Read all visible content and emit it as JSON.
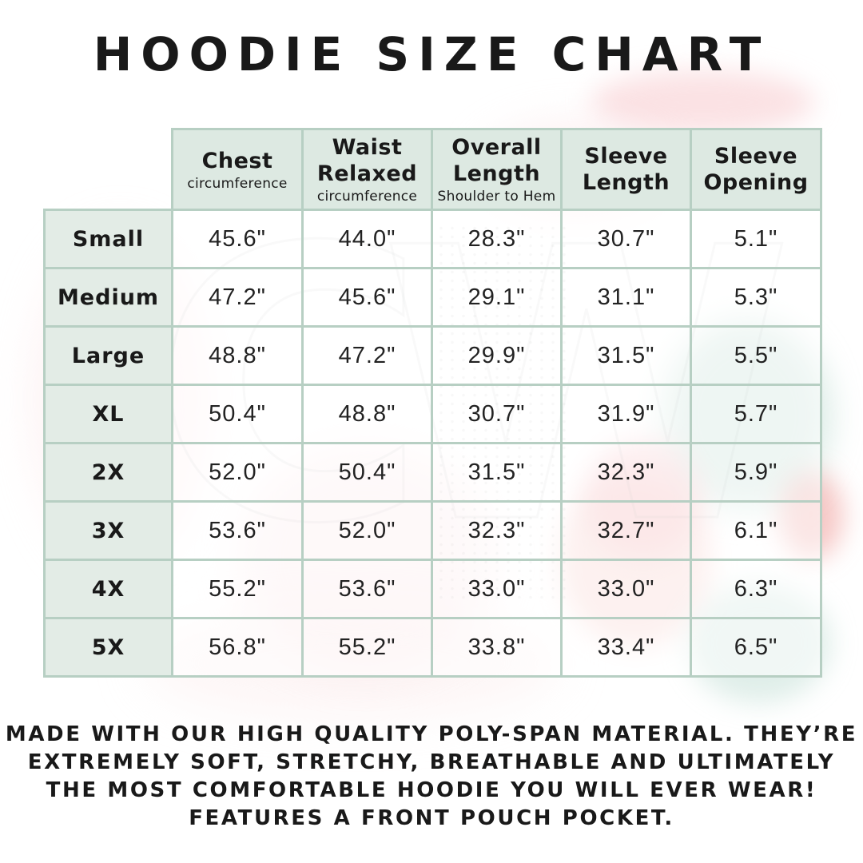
{
  "page": {
    "title": "HOODIE SIZE CHART"
  },
  "colors": {
    "table_border": "#b7cfc3",
    "header_background": "#dde9e2",
    "size_column_background": "#e3ece6",
    "text": "#191919",
    "watermark_pink": "#f8cace",
    "watermark_teal": "#9dcbbb",
    "watermark_coral": "#ec8276"
  },
  "watermark_letters": "CW",
  "table": {
    "columns": [
      {
        "title": "Chest",
        "subtitle": "circumference"
      },
      {
        "title": "Waist\nRelaxed",
        "subtitle": "circumference"
      },
      {
        "title": "Overall\nLength",
        "subtitle": "Shoulder to Hem"
      },
      {
        "title": "Sleeve\nLength",
        "subtitle": ""
      },
      {
        "title": "Sleeve\nOpening",
        "subtitle": ""
      }
    ],
    "rows": [
      {
        "size": "Small",
        "values": [
          "45.6\"",
          "44.0\"",
          "28.3\"",
          "30.7\"",
          "5.1\""
        ]
      },
      {
        "size": "Medium",
        "values": [
          "47.2\"",
          "45.6\"",
          "29.1\"",
          "31.1\"",
          "5.3\""
        ]
      },
      {
        "size": "Large",
        "values": [
          "48.8\"",
          "47.2\"",
          "29.9\"",
          "31.5\"",
          "5.5\""
        ]
      },
      {
        "size": "XL",
        "values": [
          "50.4\"",
          "48.8\"",
          "30.7\"",
          "31.9\"",
          "5.7\""
        ]
      },
      {
        "size": "2X",
        "values": [
          "52.0\"",
          "50.4\"",
          "31.5\"",
          "32.3\"",
          "5.9\""
        ]
      },
      {
        "size": "3X",
        "values": [
          "53.6\"",
          "52.0\"",
          "32.3\"",
          "32.7\"",
          "6.1\""
        ]
      },
      {
        "size": "4X",
        "values": [
          "55.2\"",
          "53.6\"",
          "33.0\"",
          "33.0\"",
          "6.3\""
        ]
      },
      {
        "size": "5X",
        "values": [
          "56.8\"",
          "55.2\"",
          "33.8\"",
          "33.4\"",
          "6.5\""
        ]
      }
    ]
  },
  "description_lines": [
    "MADE WITH OUR HIGH QUALITY POLY-SPAN MATERIAL. THEY’RE",
    "EXTREMELY SOFT, STRETCHY, BREATHABLE AND ULTIMATELY",
    "THE MOST COMFORTABLE HOODIE YOU WILL EVER WEAR!",
    "FEATURES A FRONT POUCH POCKET."
  ],
  "chart_data": {
    "type": "table",
    "title": "HOODIE SIZE CHART",
    "columns": [
      "Size",
      "Chest circumference",
      "Waist Relaxed circumference",
      "Overall Length Shoulder to Hem",
      "Sleeve Length",
      "Sleeve Opening"
    ],
    "rows": [
      [
        "Small",
        45.6,
        44.0,
        28.3,
        30.7,
        5.1
      ],
      [
        "Medium",
        47.2,
        45.6,
        29.1,
        31.1,
        5.3
      ],
      [
        "Large",
        48.8,
        47.2,
        29.9,
        31.5,
        5.5
      ],
      [
        "XL",
        50.4,
        48.8,
        30.7,
        31.9,
        5.7
      ],
      [
        "2X",
        52.0,
        50.4,
        31.5,
        32.3,
        5.9
      ],
      [
        "3X",
        53.6,
        52.0,
        32.3,
        32.7,
        6.1
      ],
      [
        "4X",
        55.2,
        53.6,
        33.0,
        33.0,
        6.3
      ],
      [
        "5X",
        56.8,
        55.2,
        33.8,
        33.4,
        6.5
      ]
    ],
    "units": "inches"
  }
}
